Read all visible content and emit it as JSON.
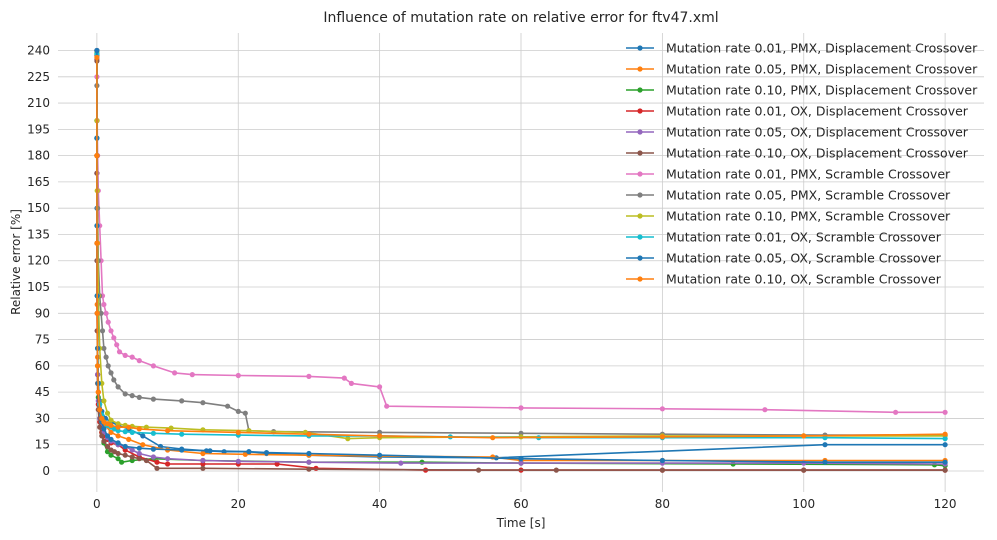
{
  "chart_data": {
    "type": "line",
    "title": "Influence of mutation rate on relative error for ftv47.xml",
    "xlabel": "Time [s]",
    "ylabel": "Relative error [%]",
    "xlim": [
      -5.5,
      125.5
    ],
    "ylim": [
      -12,
      250
    ],
    "xticks": [
      0,
      20,
      40,
      60,
      80,
      100,
      120
    ],
    "yticks": [
      0,
      15,
      30,
      45,
      60,
      75,
      90,
      105,
      120,
      135,
      150,
      165,
      180,
      195,
      210,
      225,
      240
    ],
    "grid": true,
    "legend_position": "top-right",
    "series": [
      {
        "name": "Mutation rate 0.01, PMX, Displacement Crossover",
        "color": "#1f77b4",
        "x": [
          0,
          0,
          0.02,
          0.05,
          0.1,
          0.2,
          0.4,
          0.7,
          1.2,
          2,
          3,
          4.5,
          6.5,
          9,
          12,
          15.5,
          18,
          21.5,
          24,
          30,
          40,
          56.5,
          103,
          120
        ],
        "y": [
          240,
          200,
          150,
          100,
          70,
          50,
          40,
          34,
          30,
          28,
          26,
          24,
          20,
          14,
          12.5,
          11.5,
          11,
          11,
          10,
          9,
          8,
          7.5,
          15,
          15
        ]
      },
      {
        "name": "Mutation rate 0.05, PMX, Displacement Crossover",
        "color": "#ff7f0e",
        "x": [
          0,
          0,
          0.02,
          0.05,
          0.1,
          0.2,
          0.4,
          0.7,
          1.2,
          2,
          3,
          4.5,
          6.5,
          10,
          15,
          21,
          30,
          40,
          56,
          60,
          80,
          103,
          120
        ],
        "y": [
          235,
          190,
          140,
          95,
          65,
          45,
          35,
          30,
          26,
          22,
          20,
          18,
          15,
          12,
          10,
          9.5,
          9,
          8.5,
          8,
          6,
          6,
          6,
          6
        ]
      },
      {
        "name": "Mutation rate 0.10, PMX, Displacement Crossover",
        "color": "#2ca02c",
        "x": [
          0,
          0,
          0.02,
          0.05,
          0.1,
          0.2,
          0.4,
          0.7,
          1,
          1.5,
          2,
          3,
          3.5,
          5,
          8,
          15,
          30,
          46,
          60,
          90,
          118.5,
          120
        ],
        "y": [
          238,
          180,
          130,
          90,
          60,
          42,
          30,
          22,
          16,
          11,
          9,
          7,
          5,
          6,
          7,
          6,
          5,
          5,
          4.5,
          4,
          3.5,
          3
        ]
      },
      {
        "name": "Mutation rate 0.01, OX, Displacement Crossover",
        "color": "#d62728",
        "x": [
          0,
          0,
          0.02,
          0.05,
          0.1,
          0.2,
          0.4,
          0.7,
          1,
          1.5,
          2,
          3,
          4,
          6,
          8.5,
          10,
          15,
          20,
          25.5,
          31,
          46.5,
          60,
          80,
          100,
          120
        ],
        "y": [
          237,
          180,
          130,
          90,
          55,
          38,
          28,
          22,
          20,
          18,
          16,
          15,
          12,
          8,
          5,
          4,
          4,
          4,
          4,
          1.5,
          0.5,
          0.5,
          0.5,
          0.5,
          0.5
        ]
      },
      {
        "name": "Mutation rate 0.05, OX, Displacement Crossover",
        "color": "#9467bd",
        "x": [
          0,
          0,
          0.02,
          0.05,
          0.1,
          0.2,
          0.4,
          0.7,
          1,
          1.5,
          2,
          3,
          4,
          5,
          6,
          8,
          10,
          15,
          20,
          30,
          43,
          60,
          80,
          100,
          120
        ],
        "y": [
          235,
          170,
          120,
          80,
          55,
          40,
          30,
          25,
          22,
          19,
          17,
          15,
          14,
          12,
          10,
          8,
          7,
          6,
          5.5,
          5,
          4.5,
          4.5,
          4.5,
          4.5,
          4
        ]
      },
      {
        "name": "Mutation rate 0.10, OX, Displacement Crossover",
        "color": "#8c564b",
        "x": [
          0,
          0,
          0.02,
          0.05,
          0.1,
          0.2,
          0.4,
          0.7,
          1,
          1.5,
          2,
          2.5,
          3,
          4,
          5,
          6,
          7,
          8.5,
          15,
          30,
          54,
          65,
          80,
          100,
          120
        ],
        "y": [
          234,
          170,
          120,
          80,
          50,
          35,
          25,
          20,
          17,
          14,
          12,
          11,
          10,
          9,
          8,
          7,
          6,
          1.5,
          1.5,
          1,
          0.5,
          0.5,
          0.5,
          0.5,
          0.5
        ]
      },
      {
        "name": "Mutation rate 0.01, PMX, Scramble Crossover",
        "color": "#e377c2",
        "x": [
          0,
          0,
          0.05,
          0.1,
          0.2,
          0.4,
          0.6,
          0.8,
          1,
          1.3,
          1.6,
          2,
          2.4,
          2.8,
          3.2,
          4,
          5,
          6,
          8,
          11,
          13.5,
          20,
          30,
          35,
          36,
          40,
          41,
          60,
          80,
          94.5,
          113,
          120
        ],
        "y": [
          240,
          225,
          200,
          180,
          160,
          140,
          120,
          100,
          95,
          90,
          85,
          80,
          76,
          72,
          68,
          66,
          65,
          63,
          60,
          56,
          55,
          54.5,
          54,
          53,
          50,
          48,
          37,
          36,
          35.5,
          35,
          33.5,
          33.5
        ]
      },
      {
        "name": "Mutation rate 0.05, PMX, Scramble Crossover",
        "color": "#7f7f7f",
        "x": [
          0,
          0,
          0.05,
          0.1,
          0.2,
          0.4,
          0.6,
          0.8,
          1,
          1.3,
          1.6,
          2,
          2.4,
          3,
          4,
          5,
          6,
          8,
          12,
          15,
          18.5,
          20,
          21,
          21.5,
          25,
          40,
          60,
          80,
          103,
          120
        ],
        "y": [
          240,
          220,
          180,
          150,
          120,
          100,
          90,
          80,
          70,
          65,
          60,
          56,
          52,
          48,
          44,
          43,
          42,
          41,
          40,
          39,
          37,
          34,
          33,
          23,
          22.5,
          22,
          21.5,
          21,
          20.5,
          20.5
        ]
      },
      {
        "name": "Mutation rate 0.10, PMX, Scramble Crossover",
        "color": "#bcbd22",
        "x": [
          0,
          0,
          0.05,
          0.1,
          0.2,
          0.4,
          0.7,
          1,
          1.5,
          2,
          3,
          4,
          5,
          7,
          10.5,
          15,
          21.5,
          29.5,
          35.5,
          40,
          60,
          80,
          100,
          120
        ],
        "y": [
          239,
          200,
          160,
          130,
          100,
          70,
          50,
          40,
          33,
          29,
          27,
          26,
          25.5,
          25,
          24.5,
          23.5,
          23,
          22,
          18.5,
          19,
          19.5,
          20,
          20,
          20
        ]
      },
      {
        "name": "Mutation rate 0.01, OX, Scramble Crossover",
        "color": "#17becf",
        "x": [
          0,
          0,
          0.02,
          0.05,
          0.1,
          0.2,
          0.4,
          0.7,
          1,
          1.5,
          2,
          2.5,
          3,
          4,
          5,
          8,
          12,
          20,
          30,
          40,
          50,
          62.5,
          80,
          103,
          120
        ],
        "y": [
          238,
          190,
          140,
          100,
          70,
          50,
          38,
          32,
          28,
          26,
          25,
          24,
          23,
          22.5,
          22,
          21.5,
          21,
          20.5,
          20,
          20,
          19.5,
          19,
          19,
          19,
          18.5
        ]
      },
      {
        "name": "Mutation rate 0.05, OX, Scramble Crossover",
        "color": "#1f77b4",
        "x": [
          0,
          0,
          0.02,
          0.05,
          0.1,
          0.2,
          0.4,
          0.7,
          1,
          1.5,
          2,
          3,
          4,
          6,
          8,
          12,
          16,
          21.5,
          24,
          30,
          40,
          60,
          80,
          103,
          120
        ],
        "y": [
          240,
          190,
          140,
          100,
          70,
          50,
          35,
          28,
          24,
          20,
          18,
          16,
          14,
          13,
          12.5,
          12,
          11.5,
          11,
          10.5,
          10,
          9,
          7,
          6,
          5,
          5
        ]
      },
      {
        "name": "Mutation rate 0.10, OX, Scramble Crossover",
        "color": "#ff7f0e",
        "x": [
          0,
          0,
          0.02,
          0.05,
          0.1,
          0.2,
          0.4,
          0.7,
          1,
          1.5,
          2,
          3,
          4.5,
          6,
          10,
          20,
          30,
          40,
          56,
          80,
          100,
          120
        ],
        "y": [
          236,
          180,
          130,
          90,
          60,
          45,
          35,
          30,
          28,
          27,
          26,
          25,
          25,
          24,
          23,
          22,
          21,
          20,
          19,
          19.5,
          20,
          21
        ]
      }
    ]
  }
}
